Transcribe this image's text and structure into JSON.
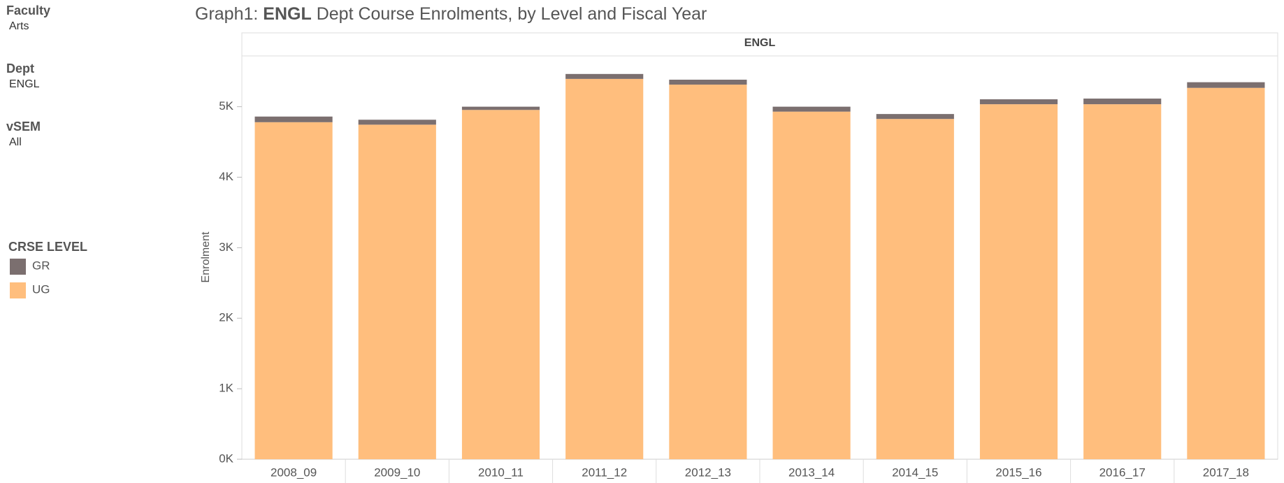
{
  "filters": [
    {
      "label": "Faculty",
      "value": "Arts"
    },
    {
      "label": "Dept",
      "value": "ENGL"
    },
    {
      "label": "vSEM",
      "value": "All"
    }
  ],
  "chart_data": {
    "type": "stacked-bar",
    "title_parts": [
      "Graph1:",
      "ENGL",
      "Dept Course Enrolments, by Level and Fiscal Year"
    ],
    "panel_header": "ENGL",
    "y_label": "Enrolment",
    "legend_title": "CRSE LEVEL",
    "categories": [
      "2008_09",
      "2009_10",
      "2010_11",
      "2011_12",
      "2012_13",
      "2013_14",
      "2014_15",
      "2015_16",
      "2016_17",
      "2017_18"
    ],
    "series": [
      {
        "name": "GR",
        "color": "#7b6f6f",
        "values": [
          80,
          70,
          46,
          70,
          70,
          70,
          70,
          70,
          80,
          80
        ]
      },
      {
        "name": "UG",
        "color": "#ffbe7d",
        "values": [
          4780,
          4745,
          4954,
          5394,
          5313,
          4930,
          4826,
          5035,
          5035,
          5267
        ]
      }
    ],
    "stack_order": [
      1,
      0
    ],
    "ylim": [
      0,
      5720
    ],
    "yticks": [
      {
        "value": 0,
        "label": "0K"
      },
      {
        "value": 1000,
        "label": "1K"
      },
      {
        "value": 2000,
        "label": "2K"
      },
      {
        "value": 3000,
        "label": "3K"
      },
      {
        "value": 4000,
        "label": "4K"
      },
      {
        "value": 5000,
        "label": "5K"
      }
    ],
    "grid": false
  }
}
